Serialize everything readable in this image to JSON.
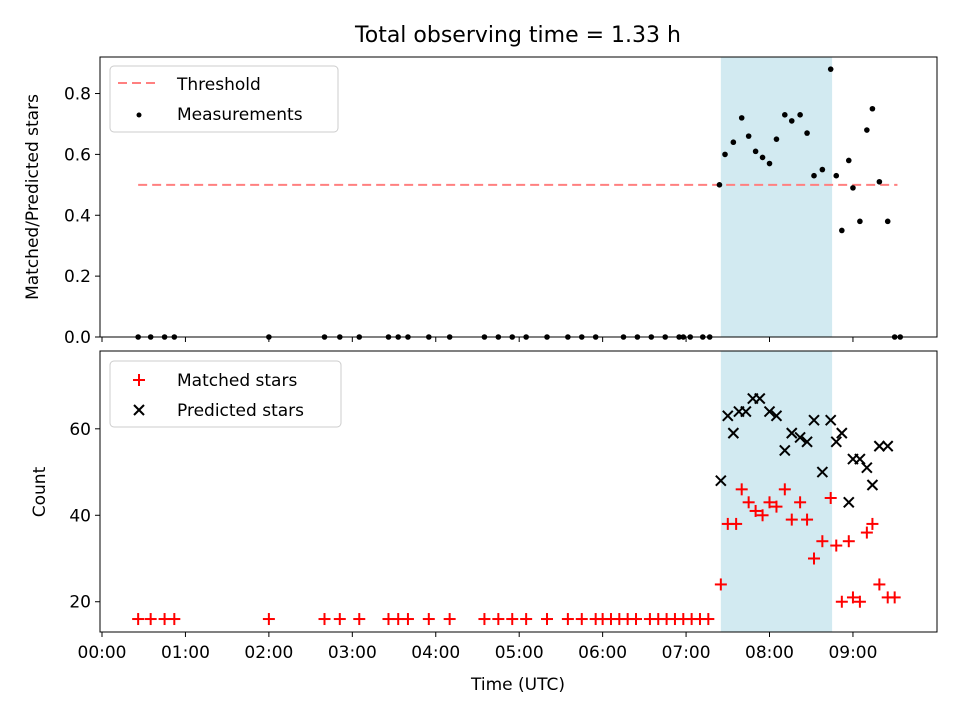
{
  "title": "Total observing time = 1.33 h",
  "chart_data": [
    {
      "type": "scatter",
      "ylabel": "Matched/Predicted stars",
      "xlim": [
        "00:00",
        "09:59"
      ],
      "ylim": [
        0,
        0.92
      ],
      "yticks": [
        0.0,
        0.2,
        0.4,
        0.6,
        0.8
      ],
      "yticklabels": [
        "0.0",
        "0.2",
        "0.4",
        "0.6",
        "0.8"
      ],
      "highlight_span": [
        "07:25",
        "08:45"
      ],
      "highlight_color": "#add8e6",
      "threshold": {
        "name": "Threshold",
        "value": 0.5,
        "x_start": "00:26",
        "x_end": "09:32",
        "color": "#ff8080",
        "style": "dashed"
      },
      "legend": {
        "placement": "top-left",
        "entries": [
          "Threshold",
          "Measurements"
        ]
      },
      "series": [
        {
          "name": "Measurements",
          "marker": "dot",
          "color": "#000000",
          "x": [
            "00:26",
            "00:35",
            "00:45",
            "00:52",
            "02:00",
            "02:40",
            "02:51",
            "03:05",
            "03:26",
            "03:33",
            "03:40",
            "03:55",
            "04:10",
            "04:35",
            "04:45",
            "04:55",
            "05:05",
            "05:20",
            "05:35",
            "05:45",
            "05:55",
            "06:15",
            "06:25",
            "06:35",
            "06:45",
            "06:55",
            "06:58",
            "07:03",
            "07:12",
            "07:17",
            "07:24",
            "07:32",
            "07:36",
            "07:40",
            "07:48",
            "07:55",
            "08:05",
            "08:12",
            "08:20",
            "08:30",
            "08:35",
            "08:45",
            "08:49",
            "08:56",
            "09:05",
            "09:08",
            "09:20",
            "09:40",
            "09:45",
            "08:58",
            "09:15",
            "09:23",
            "09:25",
            "09:28",
            "09:35",
            "09:40",
            "09:43",
            "09:45",
            "09:46",
            "09:49",
            "09:51",
            "09:47",
            "09:48",
            "09:50",
            "09:52",
            "09:54",
            "09:56",
            "09:58"
          ],
          "y": [
            0,
            0,
            0,
            0,
            0,
            0,
            0,
            0,
            0,
            0,
            0,
            0,
            0,
            0,
            0,
            0,
            0,
            0,
            0,
            0,
            0,
            0,
            0,
            0,
            0,
            0,
            0,
            0,
            0,
            0,
            0,
            0,
            0,
            0,
            0,
            0,
            0,
            0,
            0,
            0,
            0,
            0,
            0,
            0,
            0,
            0,
            0,
            0,
            0,
            0,
            0,
            0,
            0,
            0,
            0,
            0,
            0,
            0,
            0,
            0,
            0,
            0,
            0,
            0,
            0,
            0,
            0,
            0
          ]
        }
      ]
    },
    {
      "type": "scatter",
      "xlabel": "Time (UTC)",
      "ylabel": "Count",
      "xlim": [
        "00:00",
        "09:59"
      ],
      "ylim": [
        13,
        78
      ],
      "yticks": [
        20,
        40,
        60
      ],
      "yticklabels": [
        "20",
        "40",
        "60"
      ],
      "xticklabels": [
        "00:00",
        "01:00",
        "02:00",
        "03:00",
        "04:00",
        "05:00",
        "06:00",
        "07:00",
        "08:00",
        "09:00"
      ],
      "highlight_span": [
        "07:25",
        "08:45"
      ],
      "highlight_color": "#add8e6",
      "legend": {
        "placement": "top-left",
        "entries": [
          "Matched stars",
          "Predicted stars"
        ]
      },
      "series": [
        {
          "name": "Matched stars",
          "marker": "plus",
          "color": "#ff0000",
          "x": [],
          "y": []
        },
        {
          "name": "Predicted stars",
          "marker": "x",
          "color": "#000000",
          "x": [
            "07:25",
            "07:30",
            "07:34",
            "07:38",
            "07:43",
            "07:48",
            "07:53",
            "08:00",
            "08:05",
            "08:11",
            "08:16",
            "08:22",
            "08:27",
            "08:32",
            "08:38",
            "08:44",
            "08:48",
            "08:52",
            "08:57",
            "09:00",
            "09:05",
            "09:10",
            "09:14",
            "09:19",
            "09:25"
          ],
          "y": [
            48,
            63,
            59,
            64,
            64,
            67,
            67,
            64,
            63,
            55,
            59,
            58,
            57,
            62,
            50,
            62,
            57,
            59,
            43,
            53,
            53,
            51,
            47,
            56,
            56
          ]
        }
      ]
    }
  ]
}
